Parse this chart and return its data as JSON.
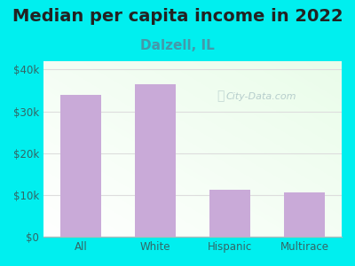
{
  "title": "Median per capita income in 2022",
  "subtitle": "Dalzell, IL",
  "categories": [
    "All",
    "White",
    "Hispanic",
    "Multirace"
  ],
  "values": [
    34000,
    36500,
    11200,
    10700
  ],
  "bar_color": "#c9aad8",
  "title_fontsize": 14,
  "subtitle_fontsize": 11,
  "subtitle_color": "#4499aa",
  "title_color": "#222222",
  "tick_label_color": "#336666",
  "bg_outer": "#00efef",
  "ylim": [
    0,
    42000
  ],
  "yticks": [
    0,
    10000,
    20000,
    30000,
    40000
  ],
  "ytick_labels": [
    "$0",
    "$10k",
    "$20k",
    "$30k",
    "$40k"
  ],
  "watermark": "City-Data.com",
  "grid_color": "#dddddd",
  "watermark_color": "#b0c8c8",
  "bottom_line_color": "#aabbbb"
}
